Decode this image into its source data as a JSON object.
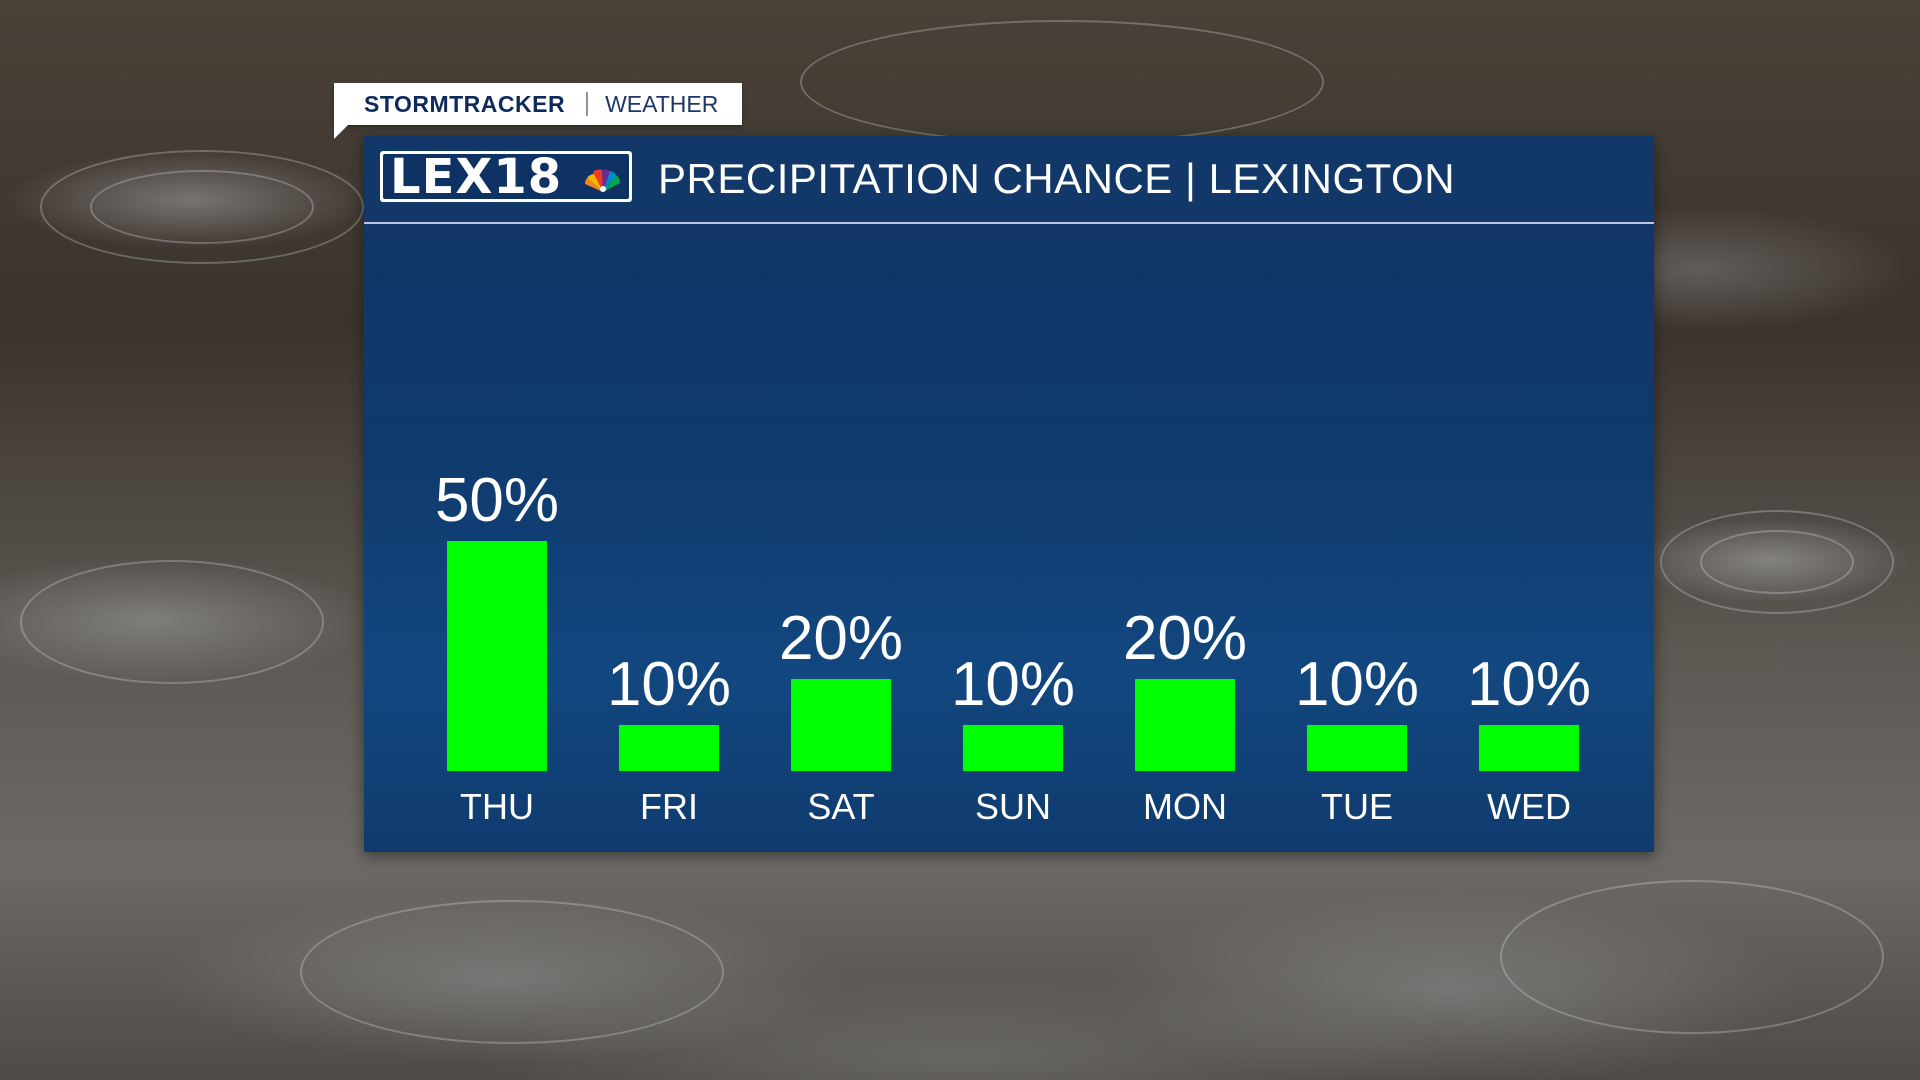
{
  "header": {
    "brand": "STORMTRACKER",
    "section": "WEATHER",
    "logo": "LEX18",
    "logo_icon": "nbc-peacock-icon",
    "title": "PRECIPITATION CHANCE | LEXINGTON"
  },
  "colors": {
    "bar": "#00ff00",
    "panel": "#123769",
    "text": "#ffffff"
  },
  "chart_data": {
    "type": "bar",
    "categories": [
      "THU",
      "FRI",
      "SAT",
      "SUN",
      "MON",
      "TUE",
      "WED"
    ],
    "values": [
      50,
      10,
      20,
      10,
      20,
      10,
      10
    ],
    "value_labels": [
      "50%",
      "10%",
      "20%",
      "10%",
      "20%",
      "10%",
      "10%"
    ],
    "ylim": [
      0,
      100
    ],
    "grid": false,
    "legend": "none"
  }
}
